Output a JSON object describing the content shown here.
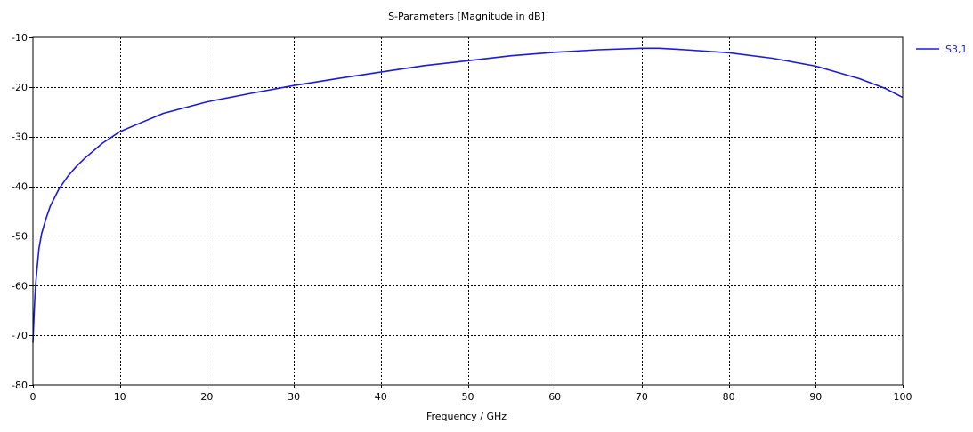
{
  "chart_data": {
    "type": "line",
    "title": "S-Parameters [Magnitude in dB]",
    "xlabel": "Frequency / GHz",
    "ylabel": "",
    "xlim": [
      0,
      100
    ],
    "ylim": [
      -80,
      -10
    ],
    "xticks": [
      0,
      10,
      20,
      30,
      40,
      50,
      60,
      70,
      80,
      90,
      100
    ],
    "yticks": [
      -10,
      -20,
      -30,
      -40,
      -50,
      -60,
      -70,
      -80
    ],
    "grid": true,
    "legend_position": "top-right",
    "series": [
      {
        "name": "S3,1",
        "color": "#1a1ae6",
        "x": [
          0.0,
          0.1,
          0.2,
          0.3,
          0.5,
          0.7,
          1.0,
          1.5,
          2,
          3,
          4,
          5,
          6,
          8,
          10,
          12,
          15,
          20,
          25,
          30,
          35,
          40,
          45,
          50,
          55,
          60,
          65,
          70,
          72,
          75,
          80,
          85,
          90,
          95,
          98,
          100
        ],
        "y": [
          -71.5,
          -67,
          -63,
          -60,
          -56,
          -52.5,
          -49.5,
          -46.5,
          -44,
          -40.5,
          -38,
          -36,
          -34.3,
          -31.3,
          -29,
          -27.5,
          -25.3,
          -23,
          -21.3,
          -19.7,
          -18.3,
          -17,
          -15.7,
          -14.7,
          -13.7,
          -13,
          -12.5,
          -12.2,
          -12.2,
          -12.5,
          -13.1,
          -14.2,
          -15.8,
          -18.3,
          -20.3,
          -22.1
        ]
      }
    ]
  }
}
